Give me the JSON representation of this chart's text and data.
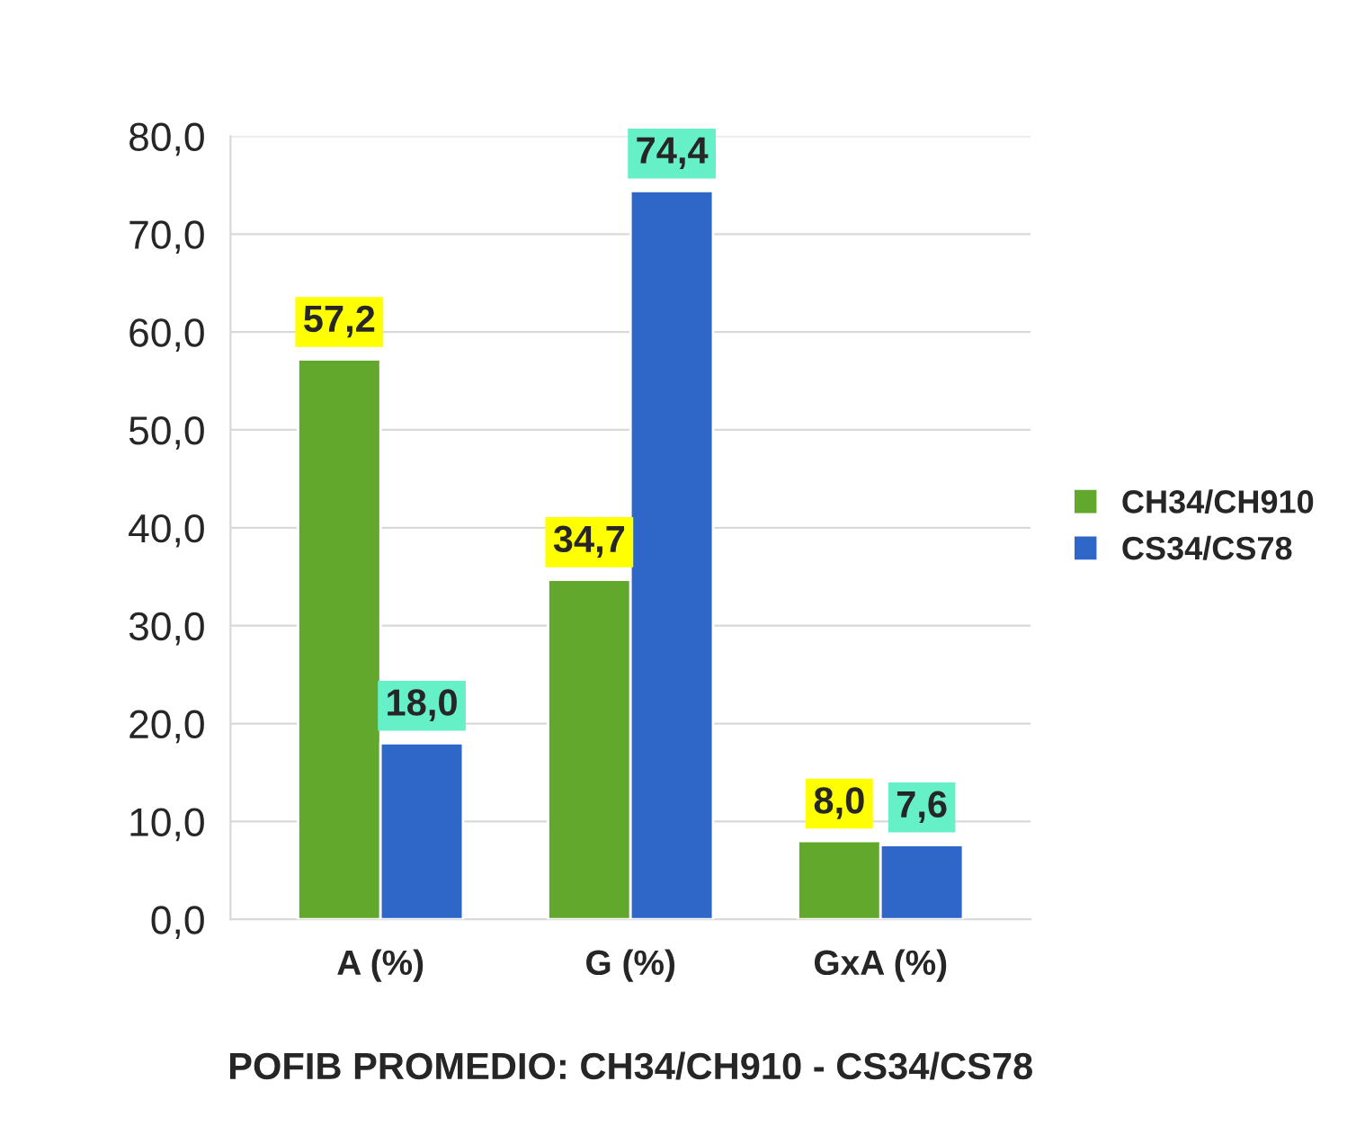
{
  "chart_data": {
    "type": "bar",
    "xlabel": "POFIB PROMEDIO: CH34/CH910 - CS34/CS78",
    "categories": [
      "A (%)",
      "G (%)",
      "GxA (%)"
    ],
    "series": [
      {
        "name": "CH34/CH910",
        "color": "#62a82c",
        "values": [
          57.2,
          34.7,
          8.0
        ],
        "value_labels": [
          "57,2",
          "34,7",
          "8,0"
        ]
      },
      {
        "name": "CS34/CS78",
        "color": "#2e67c8",
        "values": [
          18.0,
          74.4,
          7.6
        ],
        "value_labels": [
          "18,0",
          "74,4",
          "7,6"
        ]
      }
    ],
    "ylim": [
      0,
      80
    ],
    "yticks": [
      {
        "value": 0,
        "label": "0,0"
      },
      {
        "value": 10,
        "label": "10,0"
      },
      {
        "value": 20,
        "label": "20,0"
      },
      {
        "value": 30,
        "label": "30,0"
      },
      {
        "value": 40,
        "label": "40,0"
      },
      {
        "value": 50,
        "label": "50,0"
      },
      {
        "value": 60,
        "label": "60,0"
      },
      {
        "value": 70,
        "label": "70,0"
      },
      {
        "value": 80,
        "label": "80,0"
      }
    ],
    "grid": "y",
    "legend": "right"
  }
}
